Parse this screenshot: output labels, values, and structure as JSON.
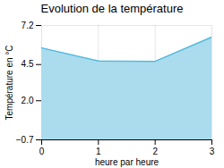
{
  "chart_data": {
    "type": "area",
    "title": "Evolution de la température",
    "xlabel": "heure par heure",
    "ylabel": "Température en °C",
    "x": [
      0,
      1,
      2,
      3
    ],
    "series": [
      {
        "type": "area",
        "color": "#aadcee",
        "values": [
          5.65,
          4.75,
          4.72,
          6.4
        ]
      },
      {
        "type": "line",
        "color": "#55bbdd",
        "values": [
          5.65,
          4.75,
          4.72,
          6.4
        ]
      }
    ],
    "xlim": [
      0,
      3
    ],
    "ylim": [
      -0.7,
      7.2
    ],
    "xticks": [
      0,
      1,
      2,
      3
    ],
    "yticks": [
      -0.7,
      {
        "value": 2.0,
        "label": "2.0"
      },
      4.5,
      7.2
    ],
    "grid": true
  }
}
